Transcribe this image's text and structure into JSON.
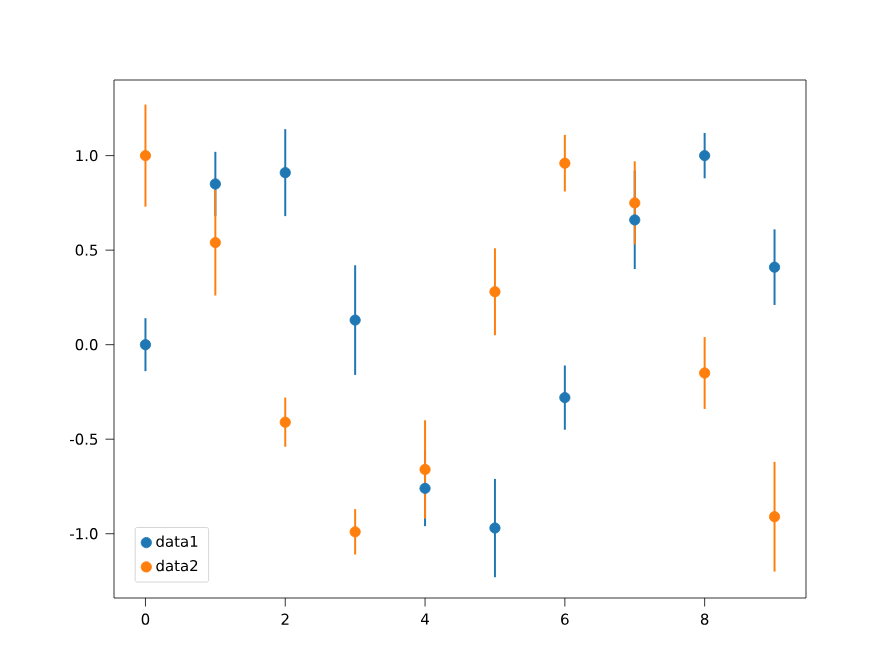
{
  "chart_data": {
    "type": "scatter",
    "x": [
      0,
      1,
      2,
      3,
      4,
      5,
      6,
      7,
      8,
      9
    ],
    "series": [
      {
        "name": "data1",
        "color": "#1f77b4",
        "values": [
          0.0,
          0.85,
          0.91,
          0.13,
          -0.76,
          -0.97,
          -0.28,
          0.66,
          1.0,
          0.41
        ],
        "errors": [
          0.14,
          0.17,
          0.23,
          0.29,
          0.2,
          0.26,
          0.17,
          0.26,
          0.12,
          0.2
        ]
      },
      {
        "name": "data2",
        "color": "#ff7f0e",
        "values": [
          1.0,
          0.54,
          -0.41,
          -0.99,
          -0.66,
          0.28,
          0.96,
          0.75,
          -0.15,
          -0.91
        ],
        "errors": [
          0.27,
          0.28,
          0.13,
          0.12,
          0.26,
          0.23,
          0.15,
          0.22,
          0.19,
          0.29
        ]
      }
    ],
    "xlim": [
      -0.45,
      9.45
    ],
    "ylim": [
      -1.34,
      1.4
    ],
    "xticks": [
      0,
      2,
      4,
      6,
      8
    ],
    "yticks": [
      {
        "value": -1,
        "label": "-1.0"
      },
      {
        "value": -0.5,
        "label": "-0.5"
      },
      {
        "value": 0,
        "label": "0.0"
      },
      {
        "value": 0.5,
        "label": "0.5"
      },
      {
        "value": 1,
        "label": "1.0"
      }
    ],
    "legend": "bottom left",
    "marker": "circle",
    "grid": false
  }
}
